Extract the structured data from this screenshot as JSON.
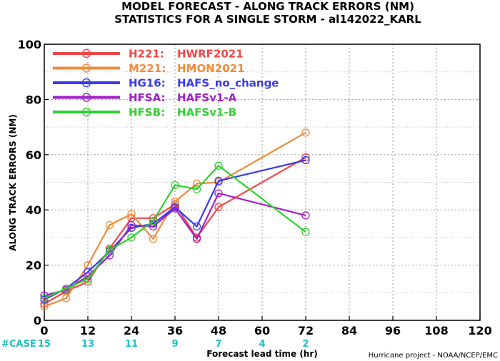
{
  "title_line1": "MODEL FORECAST - ALONG TRACK ERRORS (NM)",
  "title_line2": "STATISTICS FOR A SINGLE STORM - al142022_KARL",
  "credit": "Hurricane project - NOAA/NCEP/EMC",
  "case_label": "#CASE",
  "case_color": "#1fbfbf",
  "chart_data": {
    "type": "line",
    "xlabel": "Forecast lead time (hr)",
    "ylabel": "ALONG TRACK ERRORS (NM)",
    "xlim": [
      0,
      120
    ],
    "ylim": [
      0,
      100
    ],
    "xticks": [
      0,
      12,
      24,
      36,
      48,
      60,
      72,
      84,
      96,
      108,
      120
    ],
    "yticks": [
      0,
      20,
      40,
      60,
      80,
      100
    ],
    "grid": true,
    "legend_position": "top-left",
    "x": [
      0,
      6,
      12,
      18,
      24,
      30,
      36,
      42,
      48,
      72
    ],
    "cases": [
      {
        "x": 0,
        "n": "15"
      },
      {
        "x": 12,
        "n": "13"
      },
      {
        "x": 24,
        "n": "11"
      },
      {
        "x": 36,
        "n": "9"
      },
      {
        "x": 48,
        "n": "7"
      },
      {
        "x": 60,
        "n": "4"
      },
      {
        "x": 72,
        "n": "2"
      }
    ],
    "series": [
      {
        "name": "H221:",
        "label": "HWRF2021",
        "color": "#f04848",
        "values": [
          6,
          10.5,
          14,
          26,
          37,
          37,
          42,
          30,
          41,
          59
        ]
      },
      {
        "name": "M221:",
        "label": "HMON2021",
        "color": "#f08c38",
        "values": [
          5,
          8,
          20,
          34.5,
          38.5,
          29.5,
          43,
          49.5,
          50,
          68
        ]
      },
      {
        "name": "HG16:",
        "label": "HAFS_no_change",
        "color": "#3838f0",
        "values": [
          7.5,
          11.5,
          17.5,
          25,
          33.5,
          35,
          41,
          34,
          50.5,
          58
        ]
      },
      {
        "name": "HFSA:",
        "label": "HAFSv1-A",
        "color": "#a020c8",
        "values": [
          9,
          11,
          16,
          23.5,
          34.5,
          34,
          40.5,
          29.5,
          46,
          38
        ]
      },
      {
        "name": "HFSB:",
        "label": "HAFSv1-B",
        "color": "#30d030",
        "values": [
          8,
          11.5,
          15,
          25.5,
          30,
          36,
          49,
          47.5,
          56,
          32
        ]
      }
    ]
  }
}
